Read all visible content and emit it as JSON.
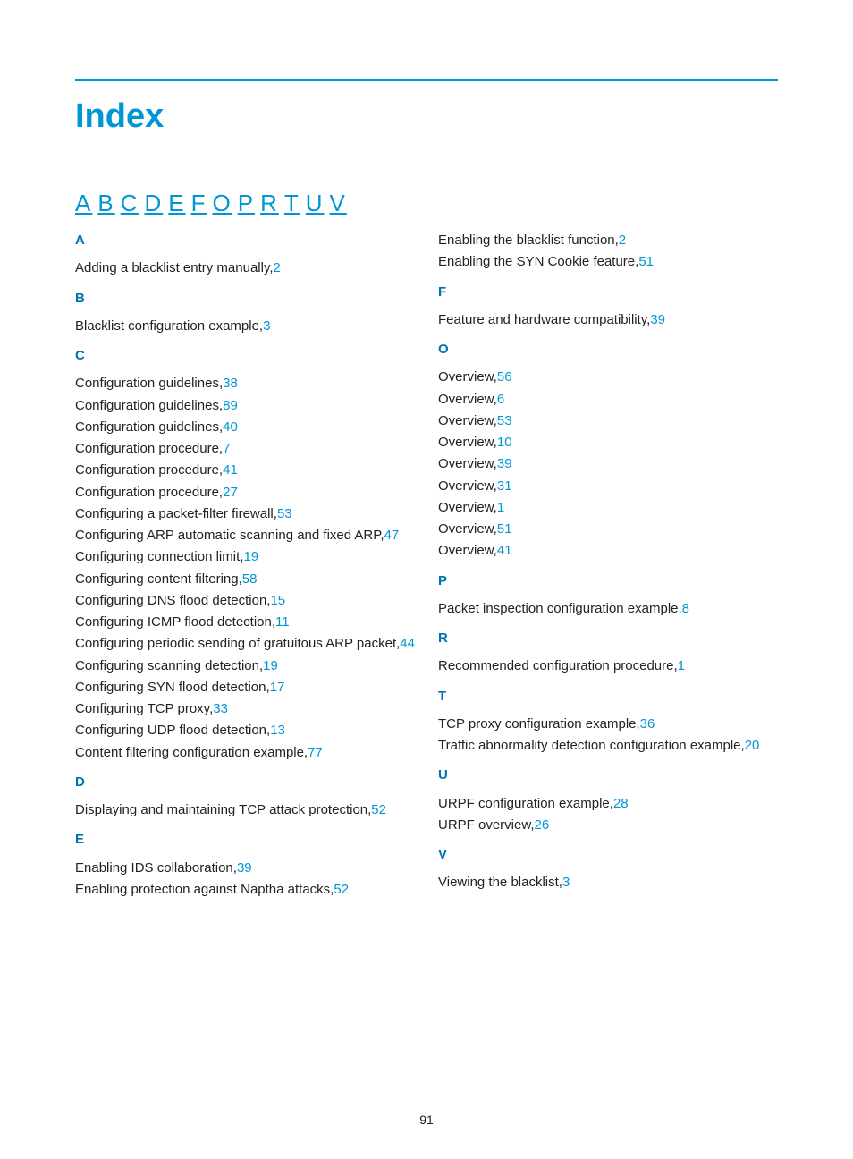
{
  "colors": {
    "accent": "#0096d6",
    "heading": "#0073b1",
    "text": "#222222",
    "background": "#ffffff"
  },
  "typography": {
    "title_fontsize": 38,
    "nav_fontsize": 26,
    "body_fontsize": 15,
    "line_height": 1.55
  },
  "title": "Index",
  "page_number": "91",
  "nav_letters": [
    "A",
    "B",
    "C",
    "D",
    "E",
    "F",
    "O",
    "P",
    "R",
    "T",
    "U",
    "V"
  ],
  "sections": [
    {
      "letter": "A",
      "entries": [
        {
          "text": "Adding a blacklist entry manually,",
          "page": "2"
        }
      ]
    },
    {
      "letter": "B",
      "entries": [
        {
          "text": "Blacklist configuration example,",
          "page": "3"
        }
      ]
    },
    {
      "letter": "C",
      "entries": [
        {
          "text": "Configuration guidelines,",
          "page": "38"
        },
        {
          "text": "Configuration guidelines,",
          "page": "89"
        },
        {
          "text": "Configuration guidelines,",
          "page": "40"
        },
        {
          "text": "Configuration procedure,",
          "page": "7"
        },
        {
          "text": "Configuration procedure,",
          "page": "41"
        },
        {
          "text": "Configuration procedure,",
          "page": "27"
        },
        {
          "text": "Configuring a packet-filter firewall,",
          "page": "53"
        },
        {
          "text": "Configuring ARP automatic scanning and fixed ARP,",
          "page": "47"
        },
        {
          "text": "Configuring connection limit,",
          "page": "19"
        },
        {
          "text": "Configuring content filtering,",
          "page": "58"
        },
        {
          "text": "Configuring DNS flood detection,",
          "page": "15"
        },
        {
          "text": "Configuring ICMP flood detection,",
          "page": "11"
        },
        {
          "text": "Configuring periodic sending of gratuitous ARP packet,",
          "page": "44"
        },
        {
          "text": "Configuring scanning detection,",
          "page": "19"
        },
        {
          "text": "Configuring SYN flood detection,",
          "page": "17"
        },
        {
          "text": "Configuring TCP proxy,",
          "page": "33"
        },
        {
          "text": "Configuring UDP flood detection,",
          "page": "13"
        },
        {
          "text": "Content filtering configuration example,",
          "page": "77"
        }
      ]
    },
    {
      "letter": "D",
      "entries": [
        {
          "text": "Displaying and maintaining TCP attack protection,",
          "page": "52"
        }
      ]
    },
    {
      "letter": "E",
      "entries": [
        {
          "text": "Enabling IDS collaboration,",
          "page": "39"
        },
        {
          "text": "Enabling protection against Naptha attacks,",
          "page": "52"
        },
        {
          "text": "Enabling the blacklist function,",
          "page": "2"
        },
        {
          "text": "Enabling the SYN Cookie feature,",
          "page": "51"
        }
      ]
    },
    {
      "letter": "F",
      "entries": [
        {
          "text": "Feature and hardware compatibility,",
          "page": "39"
        }
      ]
    },
    {
      "letter": "O",
      "entries": [
        {
          "text": "Overview,",
          "page": "56"
        },
        {
          "text": "Overview,",
          "page": "6"
        },
        {
          "text": "Overview,",
          "page": "53"
        },
        {
          "text": "Overview,",
          "page": "10"
        },
        {
          "text": "Overview,",
          "page": "39"
        },
        {
          "text": "Overview,",
          "page": "31"
        },
        {
          "text": "Overview,",
          "page": "1"
        },
        {
          "text": "Overview,",
          "page": "51"
        },
        {
          "text": "Overview,",
          "page": "41"
        }
      ]
    },
    {
      "letter": "P",
      "entries": [
        {
          "text": "Packet inspection configuration example,",
          "page": "8"
        }
      ]
    },
    {
      "letter": "R",
      "entries": [
        {
          "text": "Recommended configuration procedure,",
          "page": "1"
        }
      ]
    },
    {
      "letter": "T",
      "entries": [
        {
          "text": "TCP proxy configuration example,",
          "page": "36"
        },
        {
          "text": "Traffic abnormality detection configuration example,",
          "page": "20"
        }
      ]
    },
    {
      "letter": "U",
      "entries": [
        {
          "text": "URPF configuration example,",
          "page": "28"
        },
        {
          "text": "URPF overview,",
          "page": "26"
        }
      ]
    },
    {
      "letter": "V",
      "entries": [
        {
          "text": "Viewing the blacklist,",
          "page": "3"
        }
      ]
    }
  ]
}
